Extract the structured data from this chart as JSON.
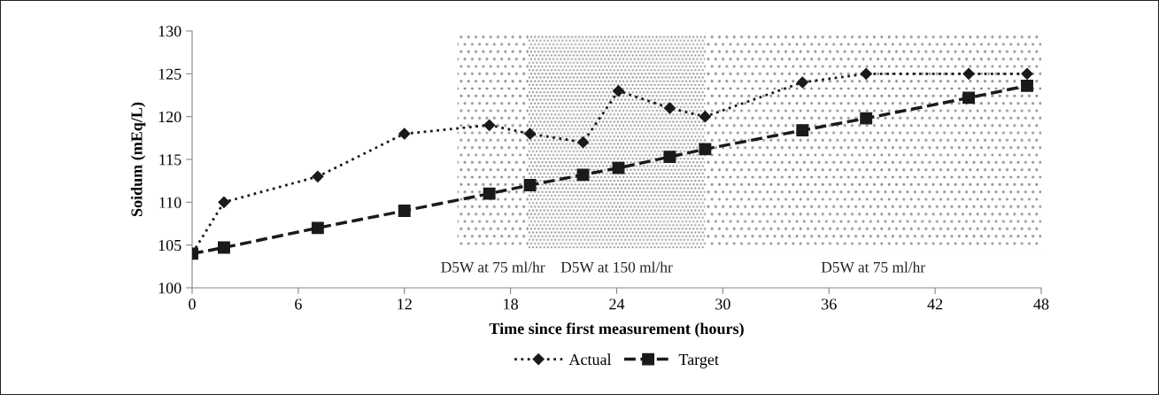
{
  "chart_data": {
    "type": "line",
    "xlabel": "Time since first measurement (hours)",
    "ylabel": "Soidum (mEq/L)",
    "xlim": [
      0,
      48
    ],
    "xticks": [
      0,
      6,
      12,
      18,
      24,
      30,
      36,
      42,
      48
    ],
    "ylim": [
      100,
      130
    ],
    "yticks": [
      100,
      105,
      110,
      115,
      120,
      125,
      130
    ],
    "grid": false,
    "legend": "bottom",
    "bands": [
      {
        "axis": "x",
        "from": 15,
        "to": 19,
        "label": "D5W at 75 ml/hr",
        "color": "#8c8c8c"
      },
      {
        "axis": "x",
        "from": 19,
        "to": 29,
        "label": "D5W at 150 ml/hr",
        "color": "#8c8c8c"
      },
      {
        "axis": "x",
        "from": 29,
        "to": 48,
        "label": "D5W at 75 ml/hr",
        "color": "#8c8c8c"
      }
    ],
    "series": [
      {
        "name": "Actual",
        "color": "#1a1a1a",
        "marker": "diamond",
        "line_style": "dotted",
        "x": [
          0,
          1.8,
          7.1,
          12,
          16.8,
          19.1,
          22.1,
          24.1,
          27,
          29,
          34.5,
          38.1,
          43.9,
          47.2
        ],
        "values": [
          104,
          110,
          113,
          118,
          119,
          118,
          117,
          123,
          121,
          120,
          124,
          125,
          125,
          125
        ]
      },
      {
        "name": "Target",
        "color": "#1a1a1a",
        "marker": "square",
        "line_style": "dashed",
        "x": [
          0,
          1.8,
          7.1,
          12,
          16.8,
          19.1,
          22.1,
          24.1,
          27,
          29,
          34.5,
          38.1,
          43.9,
          47.2
        ],
        "values": [
          104,
          104.7,
          107,
          109,
          111,
          112,
          113.2,
          114,
          115.3,
          116.2,
          118.4,
          119.8,
          122.2,
          123.6
        ]
      }
    ]
  }
}
